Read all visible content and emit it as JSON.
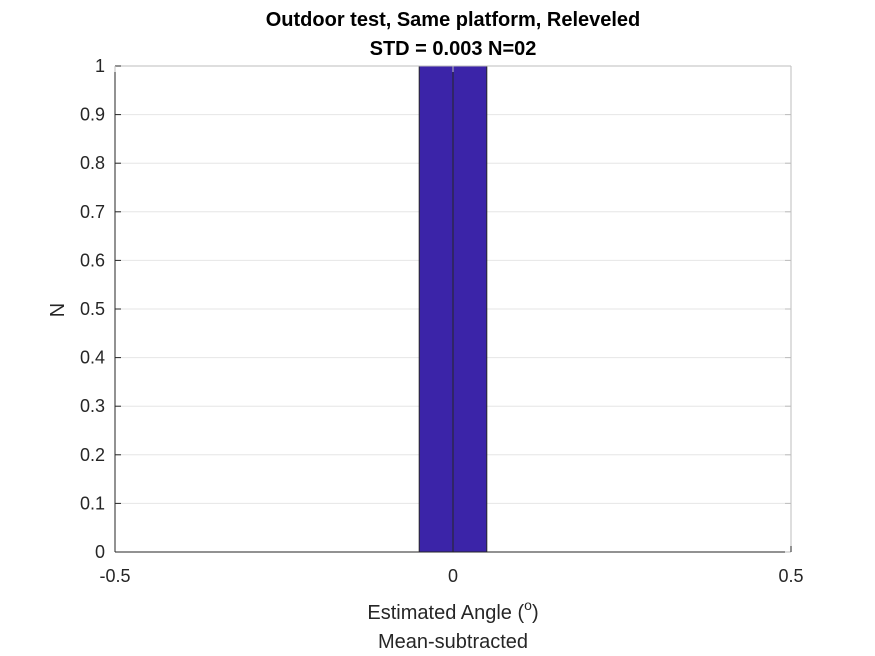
{
  "chart_data": {
    "type": "bar",
    "title": "Outdoor test, Same platform, Releveled",
    "subtitle": "STD = 0.003 N=02",
    "xlabel": "Estimated Angle (",
    "xlabel_sup": "o",
    "xlabel_close": ")",
    "xlabel_line2": "Mean-subtracted",
    "ylabel": "N",
    "xlim": [
      -0.5,
      0.5
    ],
    "ylim": [
      0,
      1
    ],
    "xticks": [
      -0.5,
      0,
      0.5
    ],
    "xtick_labels": [
      "-0.5",
      "0",
      "0.5"
    ],
    "yticks": [
      0,
      0.1,
      0.2,
      0.3,
      0.4,
      0.5,
      0.6,
      0.7,
      0.8,
      0.9,
      1
    ],
    "ytick_labels": [
      "0",
      "0.1",
      "0.2",
      "0.3",
      "0.4",
      "0.5",
      "0.6",
      "0.7",
      "0.8",
      "0.9",
      "1"
    ],
    "bars": [
      {
        "x_start": -0.05,
        "x_end": 0.0,
        "value": 1
      },
      {
        "x_start": 0.0,
        "x_end": 0.05,
        "value": 1
      }
    ],
    "bar_color": "#3b24a8",
    "grid": true,
    "legend": "none"
  }
}
